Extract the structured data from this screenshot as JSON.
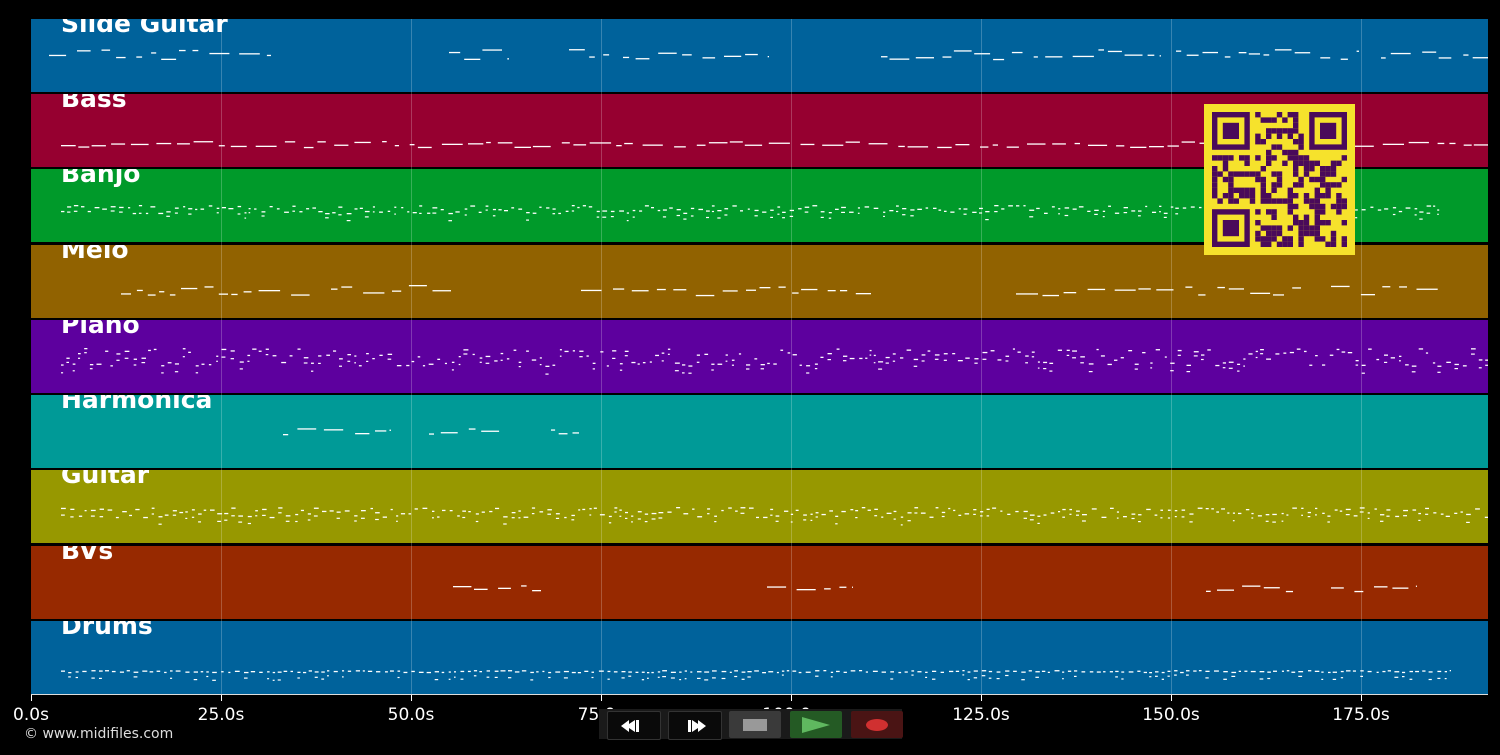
{
  "tracks": [
    {
      "name": "Slide Guitar",
      "color": "#00629b"
    },
    {
      "name": "Bass",
      "color": "#960030"
    },
    {
      "name": "Banjo",
      "color": "#009a2a"
    },
    {
      "name": "Melo",
      "color": "#916200"
    },
    {
      "name": "Piano",
      "color": "#5d009e"
    },
    {
      "name": "Harmonica",
      "color": "#009a97"
    },
    {
      "name": "Guitar",
      "color": "#979800"
    },
    {
      "name": "BVs",
      "color": "#972900"
    },
    {
      "name": "Drums",
      "color": "#00629b"
    }
  ],
  "timeline": {
    "ticks": [
      "0.0s",
      "25.0s",
      "50.0s",
      "75.0s",
      "100.0s",
      "125.0s",
      "150.0s",
      "175.0s"
    ]
  },
  "copyright": "© www.midifiles.com",
  "controls": {
    "rewind": {
      "icon": "rewind-icon"
    },
    "forward": {
      "icon": "fast-forward-icon"
    },
    "stop": {
      "icon": "stop-icon"
    },
    "play": {
      "icon": "play-icon",
      "color": "#5fb85f"
    },
    "record": {
      "icon": "record-icon",
      "color": "#d03030"
    }
  },
  "colors": {
    "background": "#000000",
    "qr_background": "#f6e22c",
    "qr_foreground": "#4a0a5a"
  }
}
